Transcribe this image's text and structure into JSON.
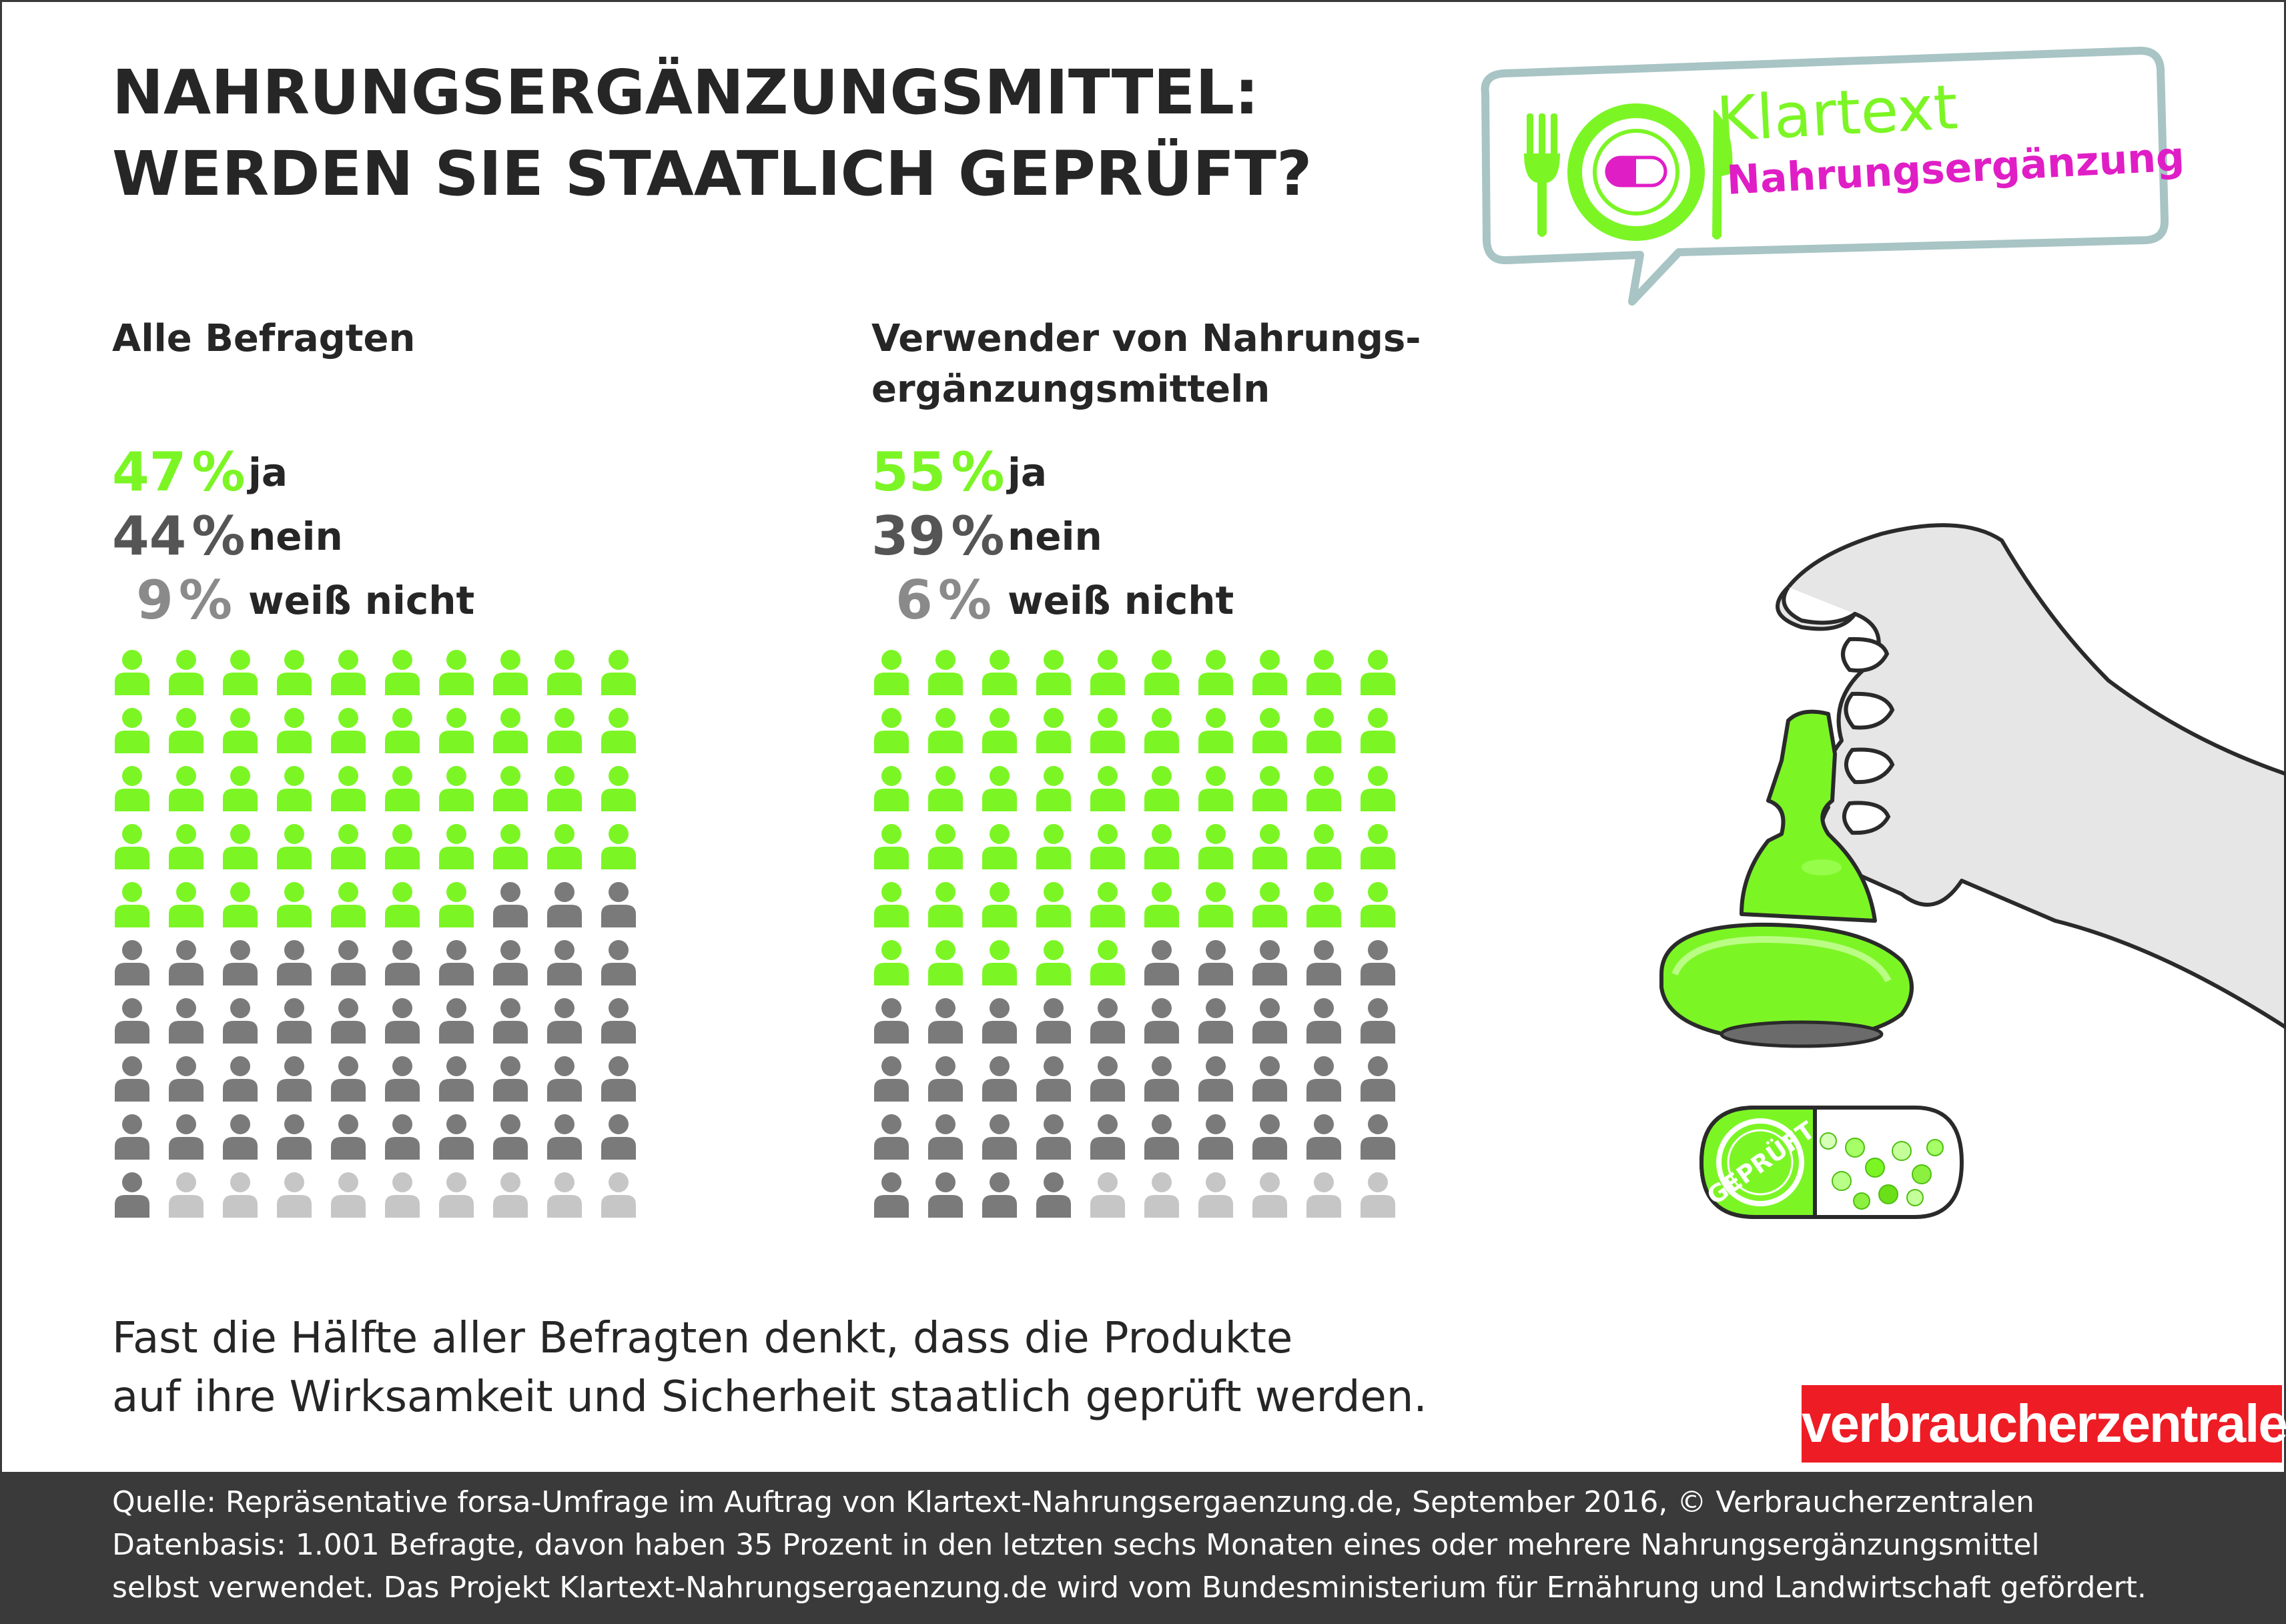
{
  "title": {
    "line1": "NAHRUNGSERGÄNZUNGSMITTEL:",
    "line2": "WERDEN SIE STAATLICH GEPRÜFT?"
  },
  "logo": {
    "line1": "Klartext",
    "line2": "Nahrungsergänzung",
    "icons": [
      "fork-icon",
      "plate-icon",
      "capsule-icon",
      "knife-icon"
    ]
  },
  "chart_data": [
    {
      "type": "pictogram",
      "title": "Alle Befragten",
      "categories": [
        "ja",
        "nein",
        "weiß nicht"
      ],
      "values": [
        47,
        44,
        9
      ],
      "value_labels": [
        "47",
        "44",
        "9"
      ],
      "unit": "%",
      "icon": "person-icon",
      "total_icons": 100,
      "colors": [
        "#7cf525",
        "#7a7a7a",
        "#c6c6c6"
      ]
    },
    {
      "type": "pictogram",
      "title_lines": [
        "Verwender von Nahrungs-",
        "ergänzungsmitteln"
      ],
      "categories": [
        "ja",
        "nein",
        "weiß nicht"
      ],
      "values": [
        55,
        39,
        6
      ],
      "value_labels": [
        "55",
        "39",
        "6"
      ],
      "unit": "%",
      "icon": "person-icon",
      "total_icons": 100,
      "colors": [
        "#7cf525",
        "#7a7a7a",
        "#c6c6c6"
      ]
    }
  ],
  "summary": {
    "line1": "Fast die Hälfte aller Befragten denkt, dass die Produkte",
    "line2": "auf  ihre  Wirksamkeit und Sicherheit staatlich geprüft werden."
  },
  "illustration": {
    "stamp_text": "GEPRÜFT",
    "icons": [
      "hand-icon",
      "stamp-icon",
      "capsule-icon"
    ]
  },
  "brand": "verbraucherzentrale",
  "footer": {
    "line1": "Quelle: Repräsentative forsa-Umfrage im Auftrag von Klartext-Nahrungsergaenzung.de, September 2016, © Verbraucherzentralen",
    "line2": "Datenbasis: 1.001 Befragte, davon haben 35 Prozent in den letzten sechs Monaten eines oder mehrere Nahrungsergänzungsmittel",
    "line3": "selbst verwendet. Das Projekt Klartext-Nahrungsergaenzung.de wird vom Bundesministerium für Ernährung und Landwirtschaft gefördert."
  }
}
